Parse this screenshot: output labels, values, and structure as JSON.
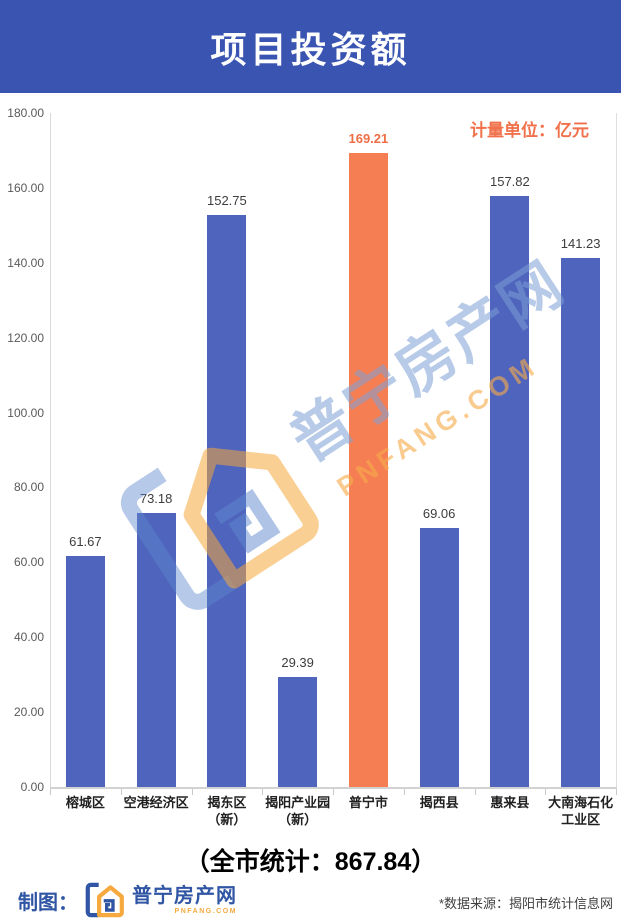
{
  "header": {
    "title": "项目投资额"
  },
  "unit_label": "计量单位：亿元",
  "chart_data": {
    "type": "bar",
    "title": "项目投资额",
    "unit": "亿元",
    "categories": [
      "榕城区",
      "空港经济区",
      "揭东区\n（新）",
      "揭阳产业园\n（新）",
      "普宁市",
      "揭西县",
      "惠来县",
      "大南海石化\n工业区"
    ],
    "values": [
      61.67,
      73.18,
      152.75,
      29.39,
      169.21,
      69.06,
      157.82,
      141.23
    ],
    "value_labels": [
      "61.67",
      "73.18",
      "152.75",
      "29.39",
      "169.21",
      "69.06",
      "157.82",
      "141.23"
    ],
    "highlight_index": 4,
    "ylim": [
      0,
      180
    ],
    "y_tick_step": 20,
    "y_ticks": [
      "0.00",
      "20.00",
      "40.00",
      "60.00",
      "80.00",
      "100.00",
      "120.00",
      "140.00",
      "160.00",
      "180.00"
    ],
    "grid": false,
    "legend": "none",
    "bar_color": "#4F64BD",
    "highlight_color": "#F67E53",
    "total_label": "（全市统计：867.84）"
  },
  "watermark": {
    "text_cn": "普宁房产网",
    "text_en": "PNFANG.COM"
  },
  "summary": {
    "text": "（全市统计：867.84）"
  },
  "footer": {
    "credit_label": "制图：",
    "logo_text": "普宁房产网",
    "logo_sub": "PNFANG.COM",
    "source": "*数据来源：揭阳市统计信息网"
  },
  "colors": {
    "banner_bg": "#3A54B2",
    "bar_blue": "#4F64BD",
    "bar_orange": "#F67E53",
    "accent_orange_text": "#F0714B",
    "brand_blue": "#2F55A4",
    "brand_gold": "#F5A93F"
  }
}
